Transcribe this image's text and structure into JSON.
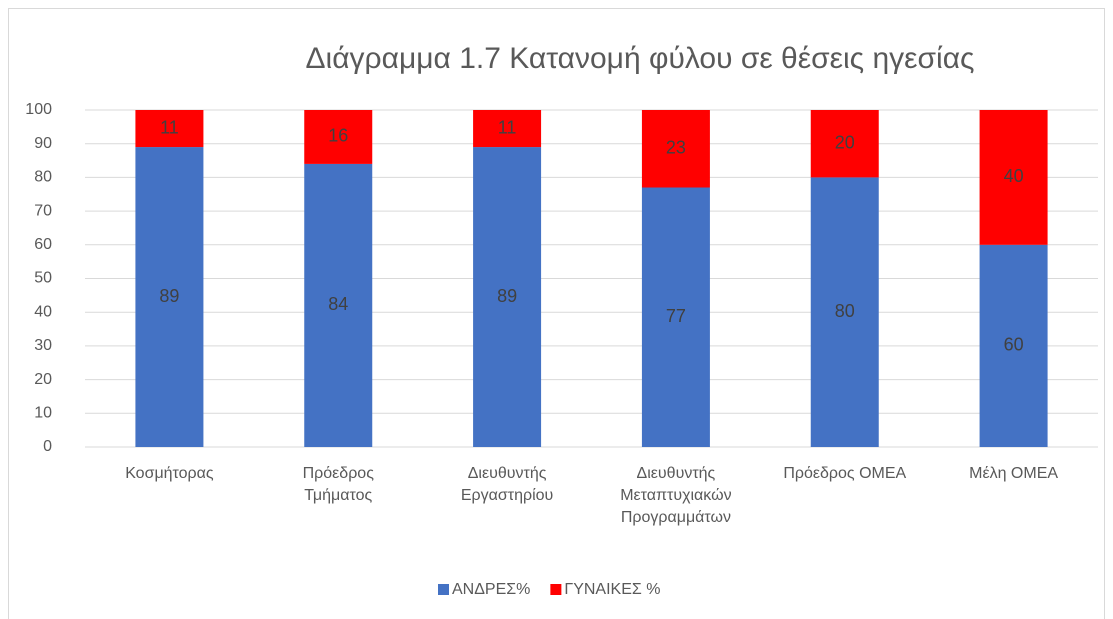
{
  "chart_data": {
    "type": "stacked_bar",
    "title": "Διάγραμμα 1.7 Κατανομή φύλου σε θέσεις ηγεσίας",
    "categories": [
      "Κοσμήτορας",
      "Πρόεδρος Τμήματος",
      "Διευθυντής Εργαστηρίου",
      "Διευθυντής Μεταπτυχιακών Προγραμμάτων",
      "Πρόεδρος ΟΜΕΑ",
      "Μέλη ΟΜΕΑ"
    ],
    "series": [
      {
        "name": "ΑΝΔΡΕΣ%",
        "color": "#4472c4",
        "values": [
          89,
          84,
          89,
          77,
          80,
          60
        ]
      },
      {
        "name": "ΓΥΝΑΙΚΕΣ %",
        "color": "#ff0000",
        "values": [
          11,
          16,
          11,
          23,
          20,
          40
        ]
      }
    ],
    "ylim": [
      0,
      100
    ],
    "yticks": [
      0,
      10,
      20,
      30,
      40,
      50,
      60,
      70,
      80,
      90,
      100
    ],
    "grid": true,
    "legend": "bottom"
  }
}
